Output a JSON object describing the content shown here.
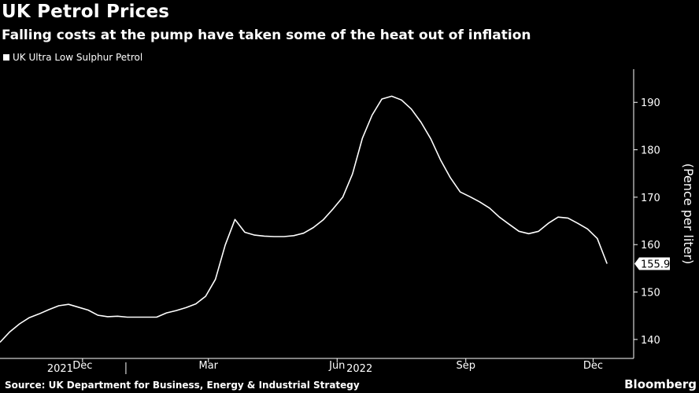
{
  "header": {
    "title": "UK Petrol Prices",
    "subtitle": "Falling costs at the pump have taken some of the heat out of inflation"
  },
  "legend": {
    "label": "UK Ultra Low Sulphur Petrol"
  },
  "footer": {
    "source": "Source: UK Department for Business, Energy & Industrial Strategy",
    "brand": "Bloomberg"
  },
  "colors": {
    "background": "#000000",
    "line": "#ffffff",
    "text": "#ffffff"
  },
  "chart_data": {
    "type": "line",
    "title": "UK Petrol Prices",
    "subtitle": "Falling costs at the pump have taken some of the heat out of inflation",
    "ylabel": "(Pence per liter)",
    "xlabel": "",
    "ylim": [
      136,
      197
    ],
    "yticks": [
      140,
      150,
      160,
      170,
      180,
      190
    ],
    "xlim": [
      "2021-10-03",
      "2022-12-30"
    ],
    "xticks": [
      {
        "date": "2021-12-01",
        "label": "Dec"
      },
      {
        "date": "2022-03-01",
        "label": "Mar"
      },
      {
        "date": "2022-06-01",
        "label": "Jun"
      },
      {
        "date": "2022-09-01",
        "label": "Sep"
      },
      {
        "date": "2022-12-01",
        "label": "Dec"
      }
    ],
    "year_labels": [
      {
        "date": "2021-11-15",
        "label": "2021"
      },
      {
        "date": "2022-06-17",
        "label": "2022"
      }
    ],
    "year_divider": "2022-01-01",
    "grid": false,
    "legend_position": "top-left",
    "last_value_label": "155.97",
    "series": [
      {
        "name": "UK Ultra Low Sulphur Petrol",
        "x": [
          "2021-10-03",
          "2021-10-10",
          "2021-10-17",
          "2021-10-24",
          "2021-10-31",
          "2021-11-07",
          "2021-11-14",
          "2021-11-21",
          "2021-11-28",
          "2021-12-05",
          "2021-12-12",
          "2021-12-19",
          "2021-12-26",
          "2022-01-02",
          "2022-01-09",
          "2022-01-16",
          "2022-01-23",
          "2022-01-30",
          "2022-02-06",
          "2022-02-13",
          "2022-02-20",
          "2022-02-27",
          "2022-03-06",
          "2022-03-13",
          "2022-03-20",
          "2022-03-27",
          "2022-04-03",
          "2022-04-10",
          "2022-04-17",
          "2022-04-24",
          "2022-05-01",
          "2022-05-08",
          "2022-05-15",
          "2022-05-22",
          "2022-05-29",
          "2022-06-05",
          "2022-06-12",
          "2022-06-19",
          "2022-06-26",
          "2022-07-03",
          "2022-07-10",
          "2022-07-17",
          "2022-07-24",
          "2022-07-31",
          "2022-08-07",
          "2022-08-14",
          "2022-08-21",
          "2022-08-28",
          "2022-09-04",
          "2022-09-11",
          "2022-09-18",
          "2022-09-25",
          "2022-10-02",
          "2022-10-09",
          "2022-10-16",
          "2022-10-23",
          "2022-10-30",
          "2022-11-06",
          "2022-11-13",
          "2022-11-20",
          "2022-11-27",
          "2022-12-04",
          "2022-12-11"
        ],
        "values": [
          139.4,
          141.6,
          143.3,
          144.6,
          145.4,
          146.3,
          147.1,
          147.4,
          146.8,
          146.2,
          145.1,
          144.8,
          144.9,
          144.7,
          144.7,
          144.7,
          144.7,
          145.6,
          146.1,
          146.7,
          147.5,
          149.1,
          152.7,
          159.9,
          165.3,
          162.6,
          162.0,
          161.8,
          161.7,
          161.7,
          161.9,
          162.4,
          163.6,
          165.2,
          167.5,
          170.0,
          174.9,
          182.4,
          187.3,
          190.7,
          191.3,
          190.5,
          188.6,
          185.8,
          182.3,
          177.8,
          174.1,
          171.1,
          170.1,
          169.0,
          167.7,
          165.8,
          164.3,
          162.8,
          162.3,
          162.8,
          164.5,
          165.8,
          165.6,
          164.5,
          163.3,
          161.3,
          155.97
        ]
      }
    ]
  }
}
